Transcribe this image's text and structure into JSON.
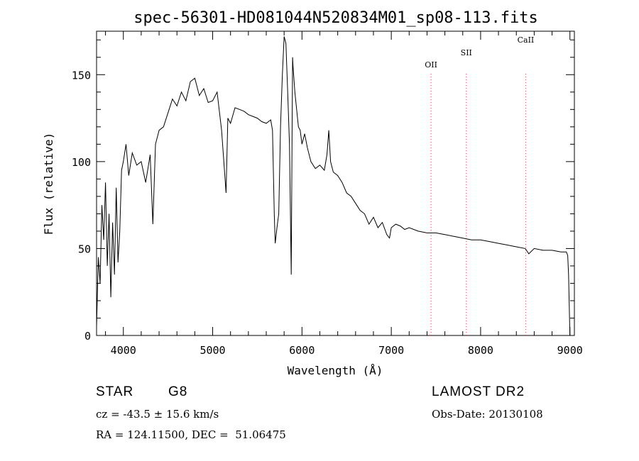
{
  "chart_data": {
    "type": "line",
    "title": "spec-56301-HD081044N520834M01_sp08-113.fits",
    "xlabel": "Wavelength (Å)",
    "ylabel": "Flux (relative)",
    "xlim": [
      3700,
      9050
    ],
    "ylim": [
      0,
      175
    ],
    "xticks": [
      4000,
      5000,
      6000,
      7000,
      8000,
      9000
    ],
    "yticks": [
      0,
      50,
      100,
      150
    ],
    "grid": false,
    "series": [
      {
        "color": "#000000",
        "x": [
          3700,
          3720,
          3740,
          3760,
          3780,
          3800,
          3820,
          3840,
          3860,
          3880,
          3900,
          3920,
          3940,
          3960,
          3980,
          4000,
          4030,
          4060,
          4100,
          4150,
          4200,
          4250,
          4300,
          4330,
          4360,
          4400,
          4450,
          4500,
          4550,
          4600,
          4650,
          4700,
          4750,
          4800,
          4850,
          4900,
          4950,
          5000,
          5050,
          5100,
          5150,
          5170,
          5200,
          5250,
          5300,
          5350,
          5400,
          5450,
          5500,
          5550,
          5600,
          5650,
          5670,
          5690,
          5700,
          5720,
          5740,
          5760,
          5780,
          5800,
          5820,
          5840,
          5860,
          5880,
          5890,
          5895,
          5900,
          5920,
          5940,
          5960,
          5980,
          6000,
          6030,
          6060,
          6100,
          6150,
          6200,
          6250,
          6280,
          6300,
          6320,
          6350,
          6400,
          6450,
          6500,
          6550,
          6600,
          6650,
          6700,
          6750,
          6800,
          6850,
          6900,
          6950,
          6980,
          7000,
          7050,
          7100,
          7150,
          7200,
          7300,
          7400,
          7500,
          7600,
          7700,
          7800,
          7900,
          8000,
          8100,
          8200,
          8300,
          8400,
          8500,
          8540,
          8600,
          8700,
          8800,
          8900,
          8960,
          8975,
          8985,
          9000
        ],
        "y": [
          5,
          45,
          30,
          75,
          55,
          88,
          40,
          70,
          22,
          65,
          35,
          85,
          42,
          60,
          95,
          100,
          110,
          92,
          105,
          98,
          100,
          88,
          104,
          64,
          110,
          118,
          120,
          128,
          136,
          132,
          140,
          135,
          146,
          148,
          138,
          142,
          134,
          135,
          140,
          118,
          82,
          125,
          122,
          131,
          130,
          129,
          127,
          126,
          125,
          123,
          122,
          124,
          118,
          70,
          53,
          62,
          70,
          120,
          150,
          172,
          168,
          140,
          110,
          35,
          125,
          160,
          155,
          140,
          130,
          120,
          118,
          110,
          116,
          108,
          100,
          96,
          98,
          95,
          104,
          118,
          100,
          94,
          92,
          88,
          82,
          80,
          76,
          72,
          70,
          64,
          68,
          62,
          65,
          58,
          56,
          62,
          64,
          63,
          61,
          62,
          60,
          59,
          59,
          58,
          57,
          56,
          55,
          55,
          54,
          53,
          52,
          51,
          50,
          47,
          50,
          49,
          49,
          48,
          48,
          46,
          35,
          0
        ]
      }
    ],
    "annotations": [
      {
        "label": "OII",
        "x": 7445
      },
      {
        "label": "SII",
        "x": 7840
      },
      {
        "label": "CaII",
        "x": 8505
      }
    ]
  },
  "info": {
    "class": "STAR",
    "subclass": "G8",
    "survey": "LAMOST DR2",
    "cz": "cz = -43.5 ± 15.6 km/s",
    "obs_date": "Obs-Date: 20130108",
    "radec": "RA = 124.11500, DEC =  51.06475"
  }
}
